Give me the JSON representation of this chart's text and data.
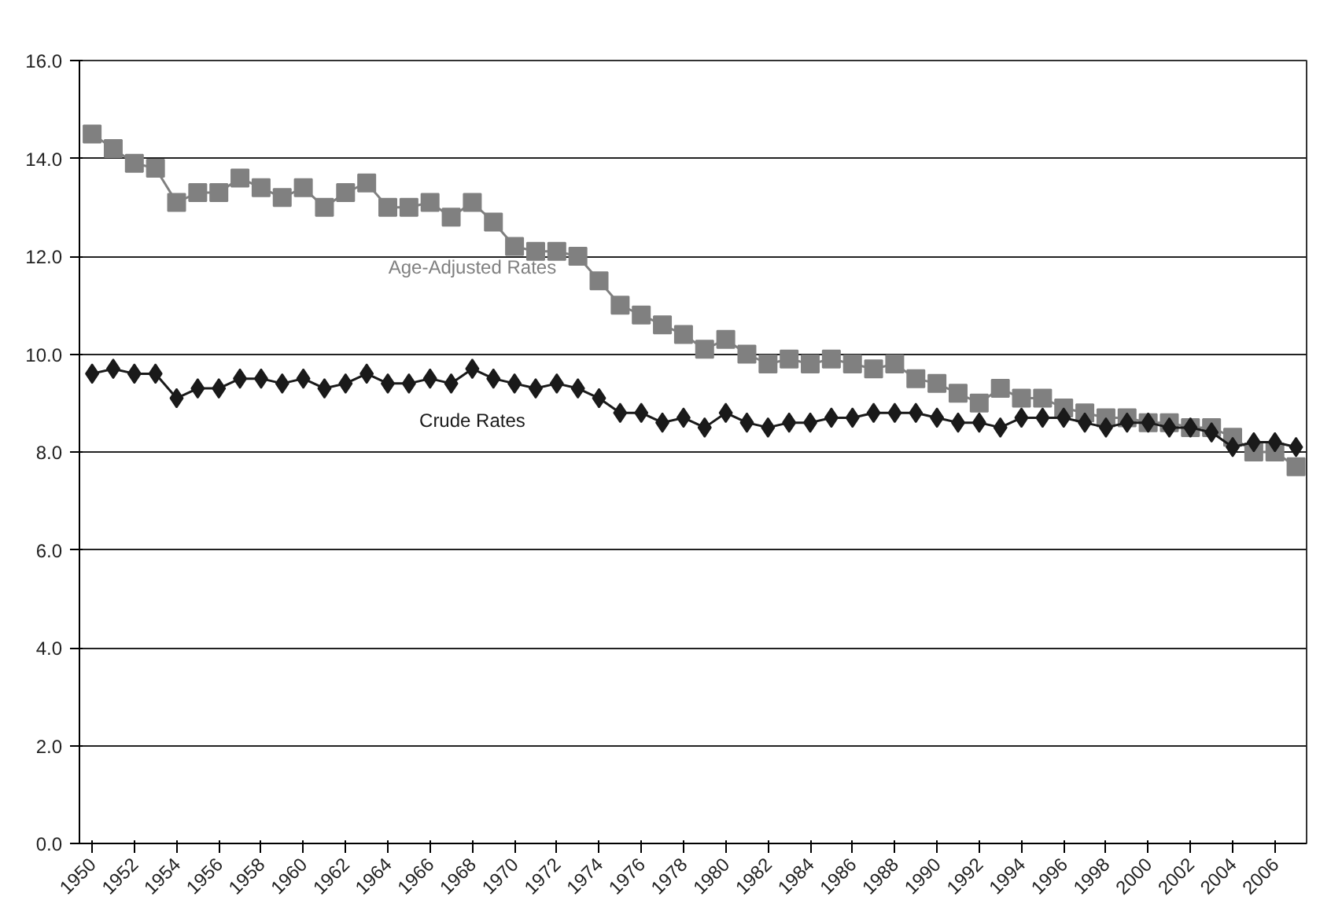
{
  "chart_data": {
    "type": "line",
    "x": [
      1950,
      1951,
      1952,
      1953,
      1954,
      1955,
      1956,
      1957,
      1958,
      1959,
      1960,
      1961,
      1962,
      1963,
      1964,
      1965,
      1966,
      1967,
      1968,
      1969,
      1970,
      1971,
      1972,
      1973,
      1974,
      1975,
      1976,
      1977,
      1978,
      1979,
      1980,
      1981,
      1982,
      1983,
      1984,
      1985,
      1986,
      1987,
      1988,
      1989,
      1990,
      1991,
      1992,
      1993,
      1994,
      1995,
      1996,
      1997,
      1998,
      1999,
      2000,
      2001,
      2002,
      2003,
      2004,
      2005,
      2006,
      2007
    ],
    "series": [
      {
        "name": "Age-Adjusted Rates",
        "color": "#808080",
        "marker": "square",
        "values": [
          14.5,
          14.2,
          13.9,
          13.8,
          13.1,
          13.3,
          13.3,
          13.6,
          13.4,
          13.2,
          13.4,
          13.0,
          13.3,
          13.5,
          13.0,
          13.0,
          13.1,
          12.8,
          13.1,
          12.7,
          12.2,
          12.1,
          12.1,
          12.0,
          11.5,
          11.0,
          10.8,
          10.6,
          10.4,
          10.1,
          10.3,
          10.0,
          9.8,
          9.9,
          9.8,
          9.9,
          9.8,
          9.7,
          9.8,
          9.5,
          9.4,
          9.2,
          9.0,
          9.3,
          9.1,
          9.1,
          8.9,
          8.8,
          8.7,
          8.7,
          8.6,
          8.6,
          8.5,
          8.5,
          8.3,
          8.0,
          8.0,
          7.7
        ]
      },
      {
        "name": "Crude Rates",
        "color": "#1a1a1a",
        "marker": "diamond",
        "values": [
          9.6,
          9.7,
          9.6,
          9.6,
          9.1,
          9.3,
          9.3,
          9.5,
          9.5,
          9.4,
          9.5,
          9.3,
          9.4,
          9.6,
          9.4,
          9.4,
          9.5,
          9.4,
          9.7,
          9.5,
          9.4,
          9.3,
          9.4,
          9.3,
          9.1,
          8.8,
          8.8,
          8.6,
          8.7,
          8.5,
          8.8,
          8.6,
          8.5,
          8.6,
          8.6,
          8.7,
          8.7,
          8.8,
          8.8,
          8.8,
          8.7,
          8.6,
          8.6,
          8.5,
          8.7,
          8.7,
          8.7,
          8.6,
          8.5,
          8.6,
          8.6,
          8.5,
          8.5,
          8.4,
          8.1,
          8.2,
          8.2,
          8.1
        ]
      }
    ],
    "xlim": [
      1949.4,
      2007.5
    ],
    "xticks": [
      1950,
      1952,
      1954,
      1956,
      1958,
      1960,
      1962,
      1964,
      1966,
      1968,
      1970,
      1972,
      1974,
      1976,
      1978,
      1980,
      1982,
      1984,
      1986,
      1988,
      1990,
      1992,
      1994,
      1996,
      1998,
      2000,
      2002,
      2004,
      2006
    ],
    "ylim": [
      0,
      16
    ],
    "yticks": [
      {
        "value": 0,
        "label": "0.0"
      },
      {
        "value": 2,
        "label": "2.0"
      },
      {
        "value": 4,
        "label": "4.0"
      },
      {
        "value": 6,
        "label": "6.0"
      },
      {
        "value": 8,
        "label": "8.0"
      },
      {
        "value": 10,
        "label": "10.0"
      },
      {
        "value": 12,
        "label": "12.0"
      },
      {
        "value": 14,
        "label": "14.0"
      },
      {
        "value": 16,
        "label": "16.0"
      }
    ],
    "grid": "y",
    "line_style": "solid"
  }
}
